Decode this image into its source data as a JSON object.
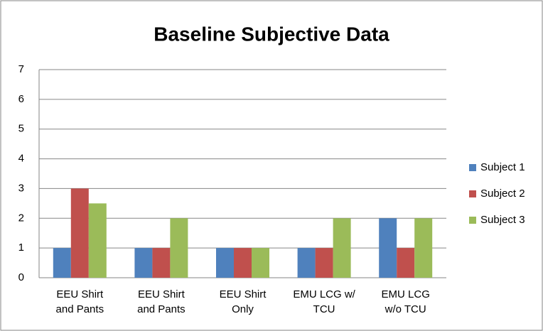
{
  "chart_data": {
    "type": "bar",
    "title": "Baseline Subjective Data",
    "categories": [
      "EEU Shirt\nand Pants",
      "EEU Shirt\nand Pants",
      "EEU Shirt\nOnly",
      "EMU LCG w/\nTCU",
      "EMU LCG\nw/o TCU"
    ],
    "series": [
      {
        "name": "Subject 1",
        "color": "#4f81bd",
        "values": [
          1,
          1,
          1,
          1,
          2
        ]
      },
      {
        "name": "Subject 2",
        "color": "#c0504d",
        "values": [
          3,
          1,
          1,
          1,
          1
        ]
      },
      {
        "name": "Subject 3",
        "color": "#9bbb59",
        "values": [
          2.5,
          2,
          1,
          2,
          2
        ]
      }
    ],
    "ylim": [
      0,
      7
    ],
    "yticks": [
      0,
      1,
      2,
      3,
      4,
      5,
      6,
      7
    ],
    "grid": true,
    "legend": "right"
  }
}
